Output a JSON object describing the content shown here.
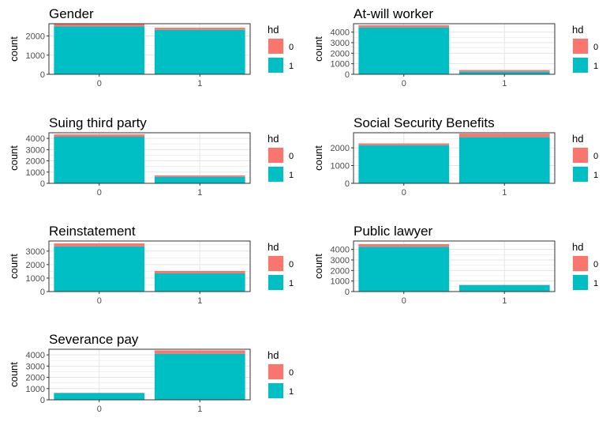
{
  "legend": {
    "title": "hd",
    "items": [
      {
        "label": "0",
        "color": "#F8766D"
      },
      {
        "label": "1",
        "color": "#00BFC4"
      }
    ]
  },
  "chart_data": [
    {
      "type": "bar",
      "stacked": true,
      "title": "Gender",
      "xlabel": "",
      "ylabel": "count",
      "categories": [
        "0",
        "1"
      ],
      "ylim": [
        0,
        2640
      ],
      "yticks": [
        0,
        1000,
        2000
      ],
      "series": [
        {
          "name": "0",
          "values": [
            120,
            110
          ]
        },
        {
          "name": "1",
          "values": [
            2500,
            2320
          ]
        }
      ]
    },
    {
      "type": "bar",
      "stacked": true,
      "title": "At-will worker",
      "xlabel": "",
      "ylabel": "count",
      "categories": [
        "0",
        "1"
      ],
      "ylim": [
        0,
        4800
      ],
      "yticks": [
        0,
        1000,
        2000,
        3000,
        4000
      ],
      "series": [
        {
          "name": "0",
          "values": [
            200,
            150
          ]
        },
        {
          "name": "1",
          "values": [
            4450,
            250
          ]
        }
      ]
    },
    {
      "type": "bar",
      "stacked": true,
      "title": "Suing third party",
      "xlabel": "",
      "ylabel": "count",
      "categories": [
        "0",
        "1"
      ],
      "ylim": [
        0,
        4500
      ],
      "yticks": [
        0,
        1000,
        2000,
        3000,
        4000
      ],
      "series": [
        {
          "name": "0",
          "values": [
            200,
            120
          ]
        },
        {
          "name": "1",
          "values": [
            4150,
            580
          ]
        }
      ]
    },
    {
      "type": "bar",
      "stacked": true,
      "title": "Social Security Benefits",
      "xlabel": "",
      "ylabel": "count",
      "categories": [
        "0",
        "1"
      ],
      "ylim": [
        0,
        2850
      ],
      "yticks": [
        0,
        1000,
        2000
      ],
      "series": [
        {
          "name": "0",
          "values": [
            100,
            200
          ]
        },
        {
          "name": "1",
          "values": [
            2150,
            2600
          ]
        }
      ]
    },
    {
      "type": "bar",
      "stacked": true,
      "title": "Reinstatement",
      "xlabel": "",
      "ylabel": "count",
      "categories": [
        "0",
        "1"
      ],
      "ylim": [
        0,
        3750
      ],
      "yticks": [
        0,
        1000,
        2000,
        3000
      ],
      "series": [
        {
          "name": "0",
          "values": [
            220,
            180
          ]
        },
        {
          "name": "1",
          "values": [
            3350,
            1350
          ]
        }
      ]
    },
    {
      "type": "bar",
      "stacked": true,
      "title": "Public lawyer",
      "xlabel": "",
      "ylabel": "count",
      "categories": [
        "0",
        "1"
      ],
      "ylim": [
        0,
        4800
      ],
      "yticks": [
        0,
        1000,
        2000,
        3000,
        4000
      ],
      "series": [
        {
          "name": "0",
          "values": [
            250,
            20
          ]
        },
        {
          "name": "1",
          "values": [
            4250,
            620
          ]
        }
      ]
    },
    {
      "type": "bar",
      "stacked": true,
      "title": "Severance pay",
      "xlabel": "",
      "ylabel": "count",
      "categories": [
        "0",
        "1"
      ],
      "ylim": [
        0,
        4500
      ],
      "yticks": [
        0,
        1000,
        2000,
        3000,
        4000
      ],
      "series": [
        {
          "name": "0",
          "values": [
            20,
            300
          ]
        },
        {
          "name": "1",
          "values": [
            600,
            4100
          ]
        }
      ]
    }
  ]
}
